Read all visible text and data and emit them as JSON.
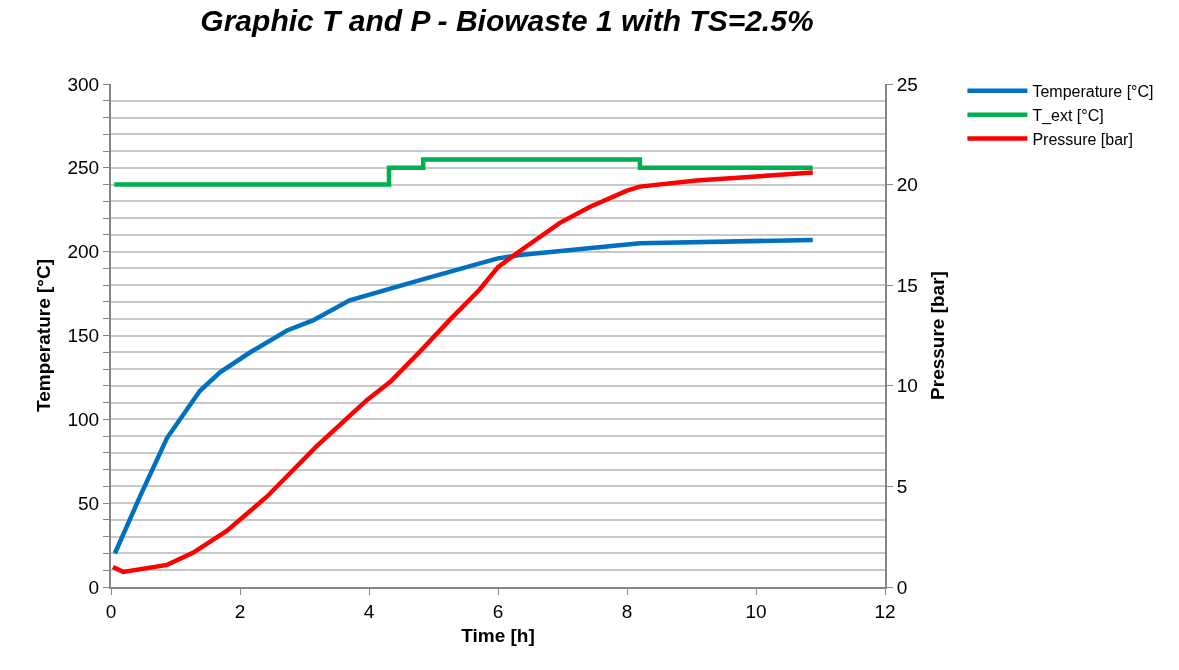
{
  "chart_data": {
    "type": "line",
    "title": "Graphic T and P - Biowaste 1 with TS=2.5%",
    "xlabel": "Time [h]",
    "ylabel": "Temperature [°C]",
    "y2label": "Pressure [bar]",
    "xlim": [
      0,
      12
    ],
    "xticks": [
      0,
      2,
      4,
      6,
      8,
      10,
      12
    ],
    "ylim": [
      0,
      300
    ],
    "yticks": [
      0,
      {
        "value": 10,
        "label": null
      },
      {
        "value": 20,
        "label": null
      },
      {
        "value": 30,
        "label": null
      },
      {
        "value": 40,
        "label": null
      },
      50,
      {
        "value": 60,
        "label": null
      },
      {
        "value": 70,
        "label": null
      },
      {
        "value": 80,
        "label": null
      },
      {
        "value": 90,
        "label": null
      },
      100,
      {
        "value": 110,
        "label": null
      },
      {
        "value": 120,
        "label": null
      },
      {
        "value": 130,
        "label": null
      },
      {
        "value": 140,
        "label": null
      },
      150,
      {
        "value": 160,
        "label": null
      },
      {
        "value": 170,
        "label": null
      },
      {
        "value": 180,
        "label": null
      },
      {
        "value": 190,
        "label": null
      },
      200,
      {
        "value": 210,
        "label": null
      },
      {
        "value": 220,
        "label": null
      },
      {
        "value": 230,
        "label": null
      },
      {
        "value": 240,
        "label": null
      },
      250,
      {
        "value": 260,
        "label": null
      },
      {
        "value": 270,
        "label": null
      },
      {
        "value": 280,
        "label": null
      },
      {
        "value": 290,
        "label": null
      },
      300
    ],
    "y2lim": [
      0,
      25
    ],
    "y2ticks": [
      0,
      5,
      10,
      15,
      20,
      25
    ],
    "grid": "y",
    "legend": "right",
    "line_style": "solid",
    "marker": "none",
    "series": [
      {
        "name": "Temperature [°C]",
        "color": "#0070c0",
        "x": [
          0.06,
          0.45,
          0.87,
          1.38,
          1.69,
          2.16,
          2.73,
          3.13,
          3.7,
          4.79,
          5.72,
          6.0,
          6.34,
          8.2,
          10.88
        ],
        "values": [
          20,
          54,
          89,
          117,
          128,
          140,
          153,
          159,
          171,
          183,
          193,
          196,
          198,
          205,
          207
        ]
      },
      {
        "name": "T_ext [°C]",
        "color": "#00b050",
        "type": "step",
        "x": [
          0.05,
          4.31,
          4.84,
          8.2,
          10.88
        ],
        "values": [
          240,
          250,
          255,
          250,
          250
        ]
      },
      {
        "name": "Pressure [bar]",
        "color": "#ff0000",
        "axis": "y2",
        "x": [
          0.03,
          0.19,
          0.87,
          1.27,
          1.8,
          2.42,
          3.19,
          3.97,
          4.33,
          4.79,
          5.26,
          5.72,
          6.0,
          6.34,
          6.96,
          7.43,
          8.0,
          8.2,
          9.08,
          10.88
        ],
        "values": [
          0.99,
          0.75,
          1.1,
          1.7,
          2.8,
          4.5,
          7.0,
          9.3,
          10.2,
          11.7,
          13.3,
          14.8,
          15.9,
          16.7,
          18.1,
          18.9,
          19.7,
          19.9,
          20.2,
          20.6
        ]
      }
    ]
  }
}
